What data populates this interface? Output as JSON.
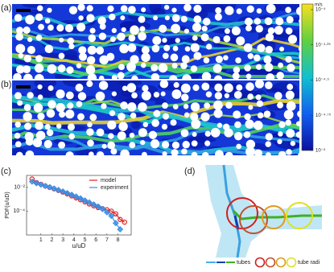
{
  "panels": {
    "a": "(a)",
    "b": "(b)",
    "c": "(c)",
    "d": "(d)"
  },
  "colorbar": {
    "unit": "m/s",
    "lim": [
      -5,
      -3.96
    ],
    "ticks": [
      {
        "value": -4,
        "label": "10⁻⁴"
      },
      {
        "value": -4.25,
        "label": "10⁻⁴·²⁵"
      },
      {
        "value": -4.5,
        "label": "10⁻⁴·⁵"
      },
      {
        "value": -4.75,
        "label": "10⁻⁴·⁷⁵"
      },
      {
        "value": -5,
        "label": "10⁻⁵"
      }
    ]
  },
  "chart_data": {
    "type": "line",
    "x_label": "u/uD",
    "y_label": "PDF(u/uD)",
    "log_y": true,
    "legend": "upper right",
    "xlim": [
      -0.3,
      9.2
    ],
    "ylim": [
      1e-06,
      0.1
    ],
    "xticks": [
      1,
      2,
      3,
      4,
      5,
      6,
      7,
      8
    ],
    "yticks": [
      {
        "value": 0.01,
        "label": "10⁻²"
      },
      {
        "value": 0.0001,
        "label": "10⁻⁴"
      }
    ],
    "series": [
      {
        "name": "model",
        "color": "#e02020",
        "marker": "circle",
        "x": [
          0.2,
          0.6,
          1.0,
          1.4,
          1.8,
          2.2,
          2.6,
          3.0,
          3.4,
          3.8,
          4.2,
          4.6,
          5.0,
          5.4,
          5.8,
          6.2,
          6.6,
          7.0,
          7.4,
          7.8,
          8.2,
          8.6
        ],
        "values": [
          0.05,
          0.025,
          0.018,
          0.013,
          0.01,
          0.0075,
          0.0055,
          0.004,
          0.0028,
          0.0019,
          0.0013,
          0.0009,
          0.0006,
          0.0004,
          0.00028,
          0.0002,
          0.00016,
          0.00013,
          0.0001,
          6e-05,
          2e-05,
          1.2e-05
        ]
      },
      {
        "name": "experiment",
        "color": "#3a8ee6",
        "marker": "diamond",
        "x": [
          0.2,
          0.6,
          1.0,
          1.4,
          1.8,
          2.2,
          2.6,
          3.0,
          3.4,
          3.8,
          4.2,
          4.6,
          5.0,
          5.4,
          5.8,
          6.2,
          6.6,
          7.0,
          7.4,
          7.8,
          8.2
        ],
        "values": [
          0.03,
          0.022,
          0.017,
          0.013,
          0.0105,
          0.008,
          0.006,
          0.0045,
          0.0033,
          0.0024,
          0.0017,
          0.0012,
          0.0008,
          0.00055,
          0.00037,
          0.00025,
          0.00015,
          8e-05,
          4e-05,
          1e-05,
          3e-06
        ]
      }
    ]
  },
  "diagram": {
    "legend": {
      "tubes": "tubes",
      "radii": "tube radi"
    }
  }
}
